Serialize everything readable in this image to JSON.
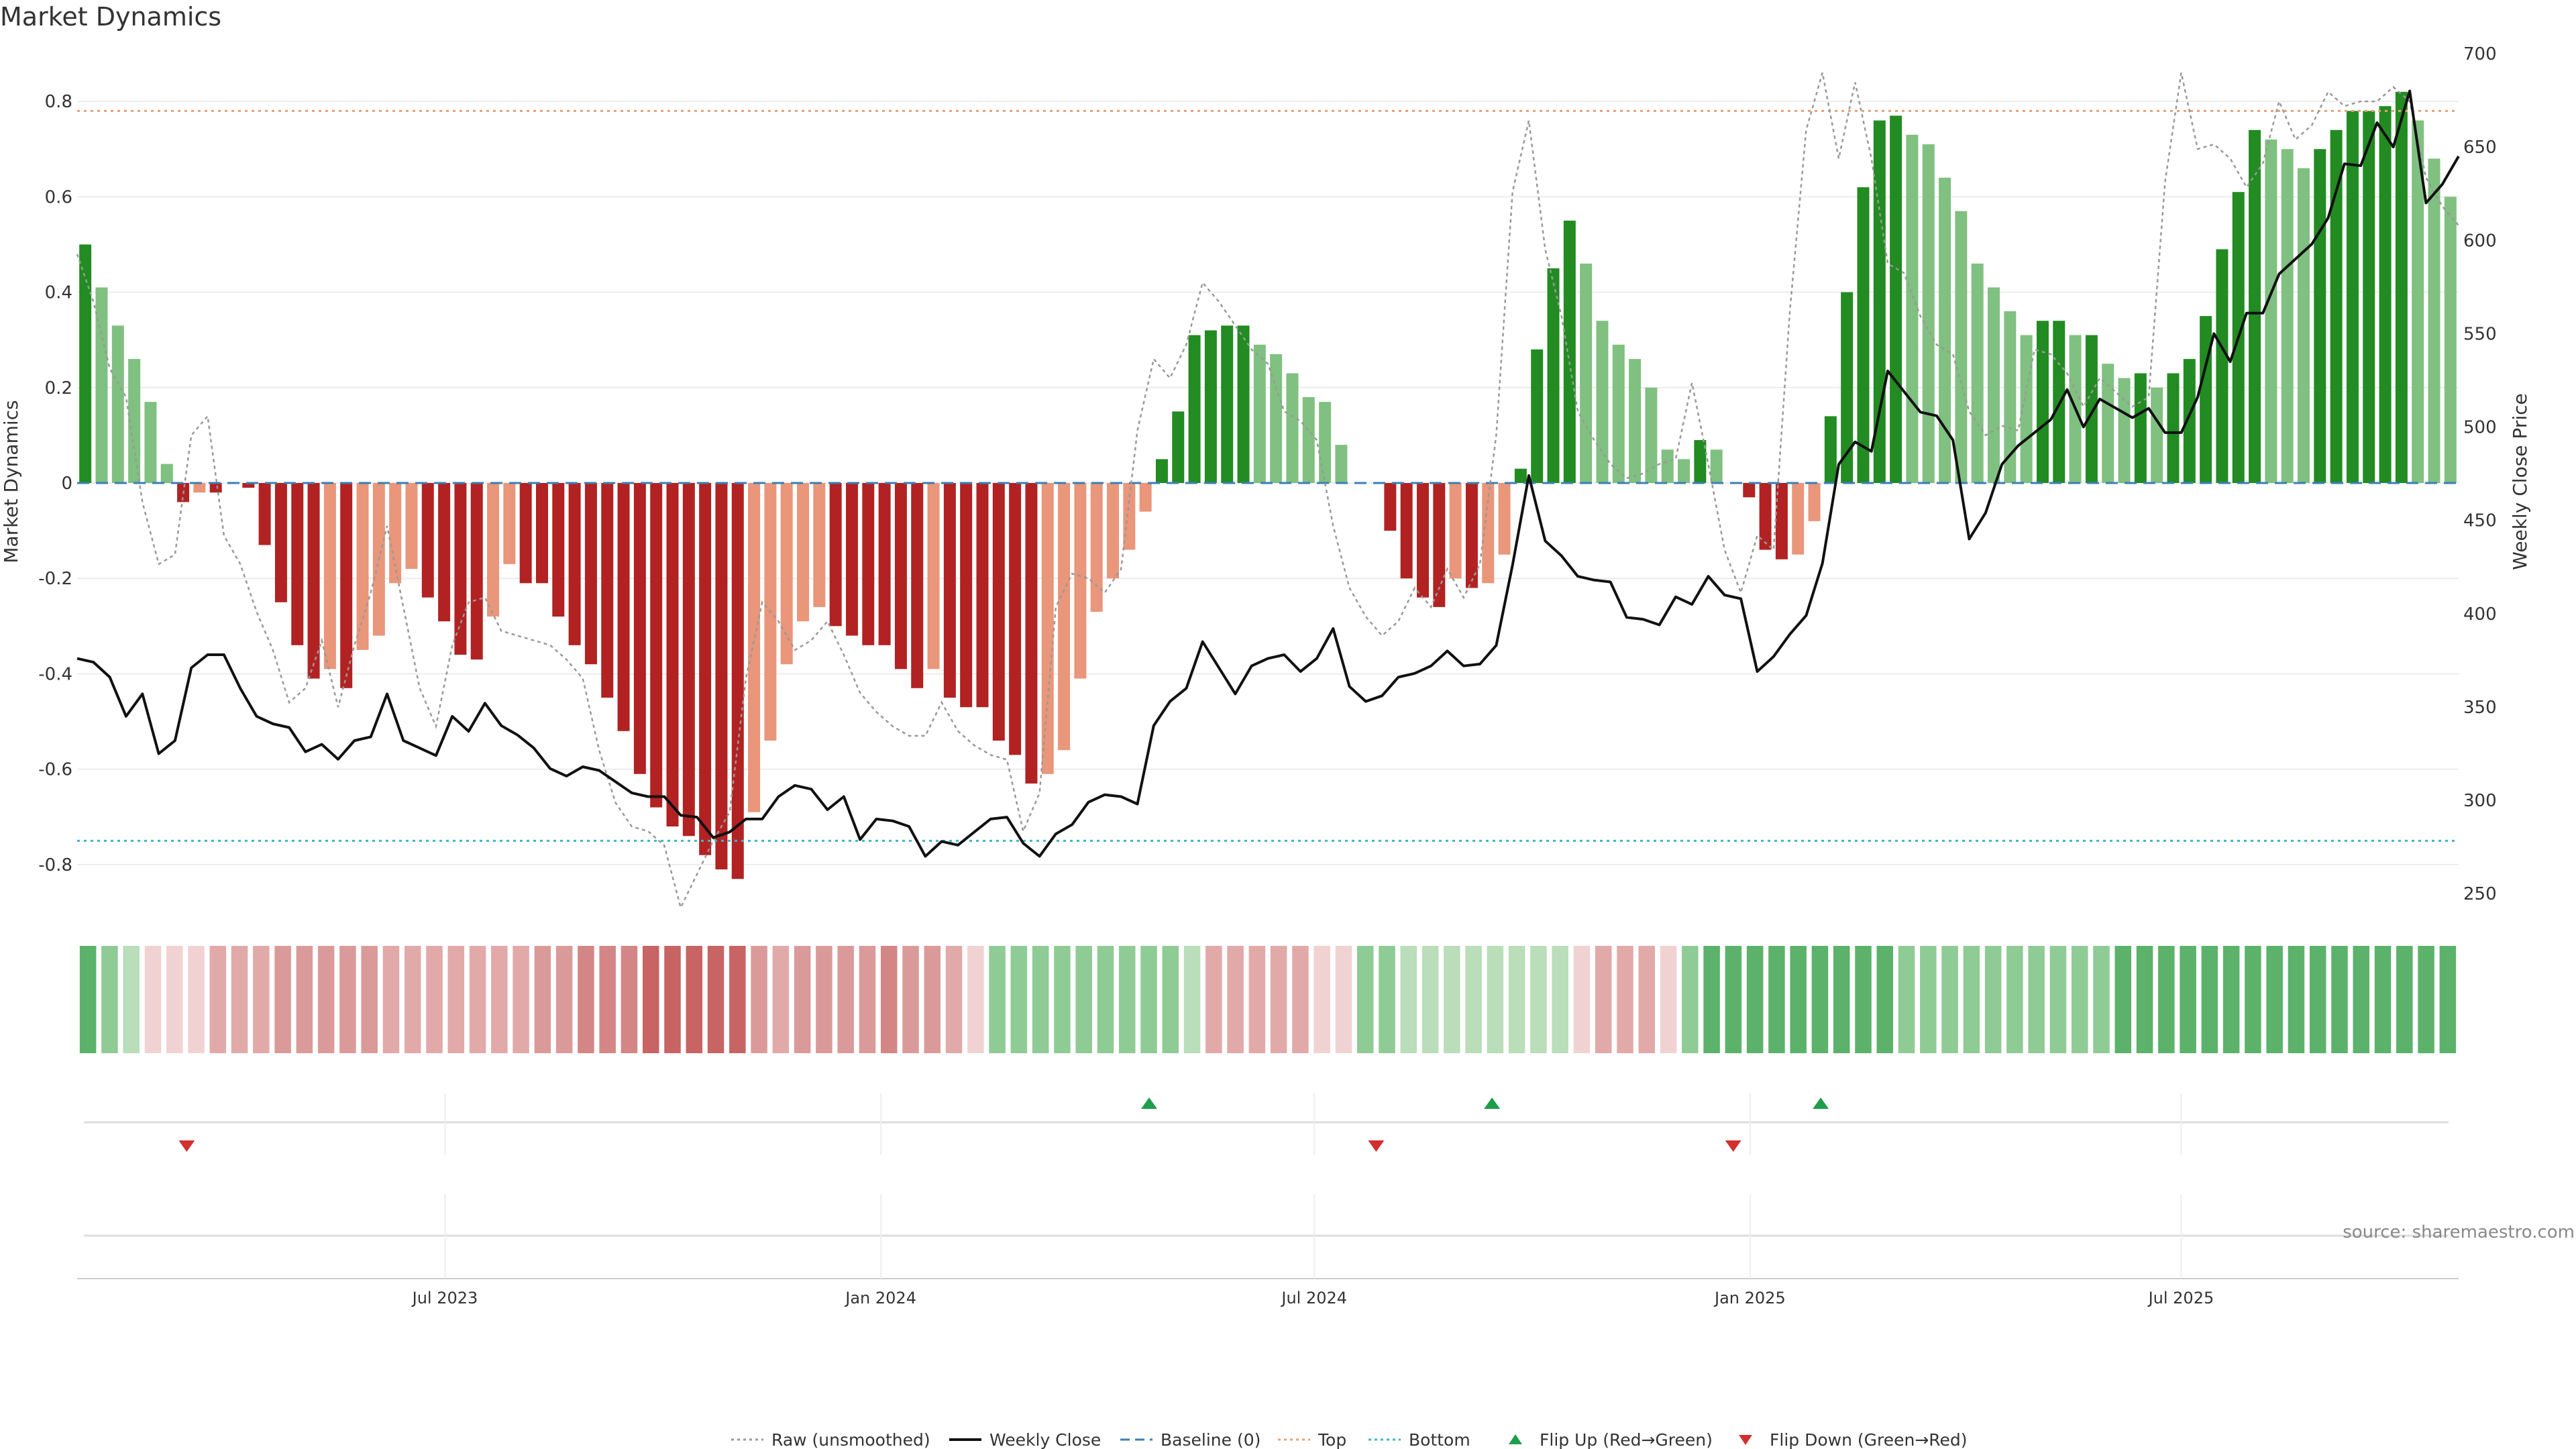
{
  "chart_data": {
    "type": "bar",
    "title": "Market Dynamics",
    "ylabel": "Market Dynamics",
    "y2label": "Weekly Close Price",
    "ylim": [
      -0.9,
      0.9
    ],
    "y2lim": [
      240,
      700
    ],
    "yticks": [
      "0.8",
      "0.6",
      "0.4",
      "0.2",
      "0",
      "-0.2",
      "-0.4",
      "-0.6",
      "-0.8"
    ],
    "y2ticks": [
      "700",
      "650",
      "600",
      "550",
      "500",
      "450",
      "400",
      "350",
      "300",
      "250"
    ],
    "xticks": [
      "Jul 2023",
      "Jan 2024",
      "Jul 2024",
      "Jan 2025",
      "Jul 2025"
    ],
    "top_line": 0.78,
    "bottom_line": -0.75,
    "source": "source: sharemaestro.com",
    "legend": [
      {
        "label": "Raw (unsmoothed)",
        "kind": "dotted",
        "color": "#999999"
      },
      {
        "label": "Weekly Close",
        "kind": "solid",
        "color": "#111111"
      },
      {
        "label": "Baseline (0)",
        "kind": "dashed",
        "color": "#3a7fb5"
      },
      {
        "label": "Top",
        "kind": "dotted",
        "color": "#e8a07a"
      },
      {
        "label": "Bottom",
        "kind": "dotted",
        "color": "#40b4c8"
      },
      {
        "label": "Flip Up (Red→Green)",
        "kind": "tri-up",
        "color": "#1f9d4a"
      },
      {
        "label": "Flip Down (Green→Red)",
        "kind": "tri-down",
        "color": "#d32f2f"
      }
    ],
    "colors": {
      "strong_green": "#228b22",
      "light_green": "#80c080",
      "strong_red": "#b22222",
      "light_red": "#e9967a",
      "raw": "#999999",
      "close": "#111111",
      "baseline": "#3a7fb5",
      "top": "#e8a07a",
      "bottom": "#40b4c8"
    },
    "momentum": [
      0.5,
      0.41,
      0.33,
      0.26,
      0.17,
      0.04,
      -0.04,
      -0.02,
      -0.02,
      0,
      -0.01,
      -0.13,
      -0.25,
      -0.34,
      -0.41,
      -0.39,
      -0.43,
      -0.35,
      -0.32,
      -0.21,
      -0.18,
      -0.24,
      -0.29,
      -0.36,
      -0.37,
      -0.28,
      -0.17,
      -0.21,
      -0.21,
      -0.28,
      -0.34,
      -0.38,
      -0.45,
      -0.52,
      -0.61,
      -0.68,
      -0.72,
      -0.74,
      -0.78,
      -0.81,
      -0.83,
      -0.69,
      -0.54,
      -0.38,
      -0.29,
      -0.26,
      -0.3,
      -0.32,
      -0.34,
      -0.34,
      -0.39,
      -0.43,
      -0.39,
      -0.45,
      -0.47,
      -0.47,
      -0.54,
      -0.57,
      -0.63,
      -0.61,
      -0.56,
      -0.41,
      -0.27,
      -0.2,
      -0.14,
      -0.06,
      0.05,
      0.15,
      0.31,
      0.32,
      0.33,
      0.33,
      0.29,
      0.27,
      0.23,
      0.18,
      0.17,
      0.08,
      0,
      0,
      -0.1,
      -0.2,
      -0.24,
      -0.26,
      -0.2,
      -0.22,
      -0.21,
      -0.15,
      0.03,
      0.28,
      0.45,
      0.55,
      0.46,
      0.34,
      0.29,
      0.26,
      0.2,
      0.07,
      0.05,
      0.09,
      0.07,
      0,
      -0.03,
      -0.14,
      -0.16,
      -0.15,
      -0.08,
      0.14,
      0.4,
      0.62,
      0.76,
      0.77,
      0.73,
      0.71,
      0.64,
      0.57,
      0.46,
      0.41,
      0.36,
      0.31,
      0.34,
      0.34,
      0.31,
      0.31,
      0.25,
      0.22,
      0.23,
      0.2,
      0.23,
      0.26,
      0.35,
      0.49,
      0.61,
      0.74,
      0.72,
      0.7,
      0.66,
      0.7,
      0.74,
      0.78,
      0.78,
      0.79,
      0.82,
      0.76,
      0.68,
      0.6
    ],
    "raw": [
      0.48,
      0.38,
      0.24,
      0.18,
      -0.04,
      -0.17,
      -0.15,
      0.1,
      0.14,
      -0.11,
      -0.17,
      -0.27,
      -0.35,
      -0.46,
      -0.43,
      -0.33,
      -0.47,
      -0.34,
      -0.23,
      -0.09,
      -0.26,
      -0.43,
      -0.51,
      -0.34,
      -0.25,
      -0.24,
      -0.31,
      -0.32,
      -0.33,
      -0.34,
      -0.37,
      -0.41,
      -0.56,
      -0.67,
      -0.72,
      -0.73,
      -0.76,
      -0.89,
      -0.82,
      -0.75,
      -0.69,
      -0.41,
      -0.25,
      -0.29,
      -0.35,
      -0.33,
      -0.29,
      -0.36,
      -0.44,
      -0.48,
      -0.51,
      -0.53,
      -0.53,
      -0.46,
      -0.52,
      -0.55,
      -0.57,
      -0.58,
      -0.73,
      -0.65,
      -0.26,
      -0.19,
      -0.2,
      -0.23,
      -0.18,
      0.11,
      0.26,
      0.22,
      0.29,
      0.42,
      0.38,
      0.33,
      0.28,
      0.25,
      0.15,
      0.13,
      0.09,
      -0.09,
      -0.22,
      -0.28,
      -0.32,
      -0.29,
      -0.22,
      -0.26,
      -0.18,
      -0.24,
      -0.17,
      0.1,
      0.61,
      0.76,
      0.49,
      0.35,
      0.15,
      0.09,
      0.04,
      0.01,
      0.02,
      0.04,
      0.05,
      0.21,
      0.04,
      -0.14,
      -0.23,
      -0.11,
      -0.14,
      0.36,
      0.74,
      0.86,
      0.68,
      0.84,
      0.68,
      0.46,
      0.44,
      0.35,
      0.29,
      0.27,
      0.15,
      0.1,
      0.12,
      0.11,
      0.28,
      0.27,
      0.23,
      0.16,
      0.22,
      0.19,
      0.16,
      0.18,
      0.63,
      0.86,
      0.7,
      0.71,
      0.68,
      0.62,
      0.67,
      0.8,
      0.72,
      0.75,
      0.82,
      0.79,
      0.8,
      0.8,
      0.83,
      0.8,
      0.64,
      0.58,
      0.54
    ],
    "close": [
      376,
      374,
      366,
      345,
      357,
      325,
      332,
      371,
      378,
      378,
      360,
      345,
      341,
      339,
      326,
      330,
      322,
      332,
      334,
      357,
      332,
      328,
      324,
      345,
      337,
      352,
      340,
      335,
      328,
      317,
      313,
      318,
      316,
      310,
      304,
      302,
      302,
      292,
      291,
      280,
      283,
      290,
      290,
      302,
      308,
      306,
      295,
      302,
      279,
      290,
      289,
      286,
      270,
      278,
      276,
      283,
      290,
      291,
      277,
      270,
      282,
      287,
      299,
      303,
      302,
      298,
      340,
      353,
      360,
      385,
      371,
      357,
      372,
      376,
      378,
      369,
      376,
      392,
      361,
      353,
      356,
      366,
      368,
      372,
      380,
      372,
      373,
      383,
      426,
      474,
      439,
      431,
      420,
      418,
      417,
      398,
      397,
      394,
      409,
      405,
      420,
      410,
      408,
      369,
      377,
      389,
      399,
      427,
      480,
      492,
      487,
      530,
      519,
      508,
      506,
      493,
      440,
      454,
      480,
      490,
      497,
      504,
      520,
      500,
      515,
      510,
      505,
      510,
      497,
      497,
      516,
      550,
      535,
      561,
      561,
      582,
      590,
      598,
      612,
      641,
      640,
      663,
      650,
      680,
      620,
      630,
      645
    ],
    "strip": [
      3,
      2,
      1,
      -1,
      -1,
      -1,
      -2,
      -2,
      -2,
      -3,
      -3,
      -3,
      -3,
      -3,
      -2,
      -2,
      -2,
      -2,
      -2,
      -2,
      -2,
      -3,
      -3,
      -4,
      -4,
      -4,
      -5,
      -5,
      -5,
      -5,
      -5,
      -3,
      -2,
      -3,
      -3,
      -3,
      -3,
      -4,
      -3,
      -3,
      -2,
      -1,
      2,
      2,
      2,
      2,
      2,
      2,
      2,
      2,
      2,
      1,
      -2,
      -2,
      -2,
      -2,
      -2,
      -1,
      -1,
      2,
      2,
      1,
      1,
      1,
      1,
      1,
      1,
      1,
      1,
      -1,
      -2,
      -2,
      -2,
      -1,
      2,
      3,
      3,
      3,
      3,
      3,
      3,
      3,
      3,
      3,
      2,
      2,
      2,
      2,
      2,
      2,
      2,
      2,
      2,
      2,
      3,
      3,
      3,
      3,
      3,
      3,
      3,
      3,
      3,
      3,
      3,
      3,
      3,
      3,
      3,
      3
    ],
    "flip_up_x": [
      0.4505,
      0.5955,
      0.7345
    ],
    "flip_down_x": [
      0.0435,
      0.5465,
      0.6975
    ]
  }
}
